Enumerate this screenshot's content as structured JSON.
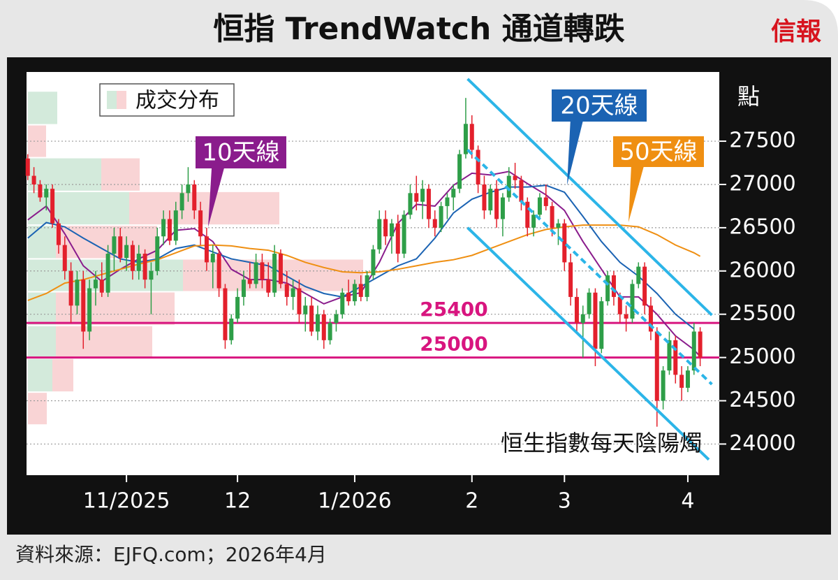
{
  "logo": "信報",
  "source": "資料來源：EJFQ.com；2026年4月",
  "chart_data": {
    "type": "candlestick",
    "title": "恒指 TrendWatch 通道轉跌",
    "y_unit": "點",
    "label": "恒生指數每天陰陽燭",
    "up_color": "#2e9e48",
    "down_color": "#e3202c",
    "grid": true,
    "xlim": [
      -0.2,
      112.1
    ],
    "ylim": [
      23640,
      28300
    ],
    "yticks": [
      24000,
      24500,
      25000,
      25500,
      26000,
      26500,
      27000,
      27500
    ],
    "xticks": [
      {
        "value": 16,
        "label": "11/2025"
      },
      {
        "value": 34,
        "label": "12"
      },
      {
        "value": 53,
        "label": "1/2026"
      },
      {
        "value": 72,
        "label": "2"
      },
      {
        "value": 87,
        "label": "3"
      },
      {
        "value": 107,
        "label": "4"
      }
    ],
    "ohlc": [
      [
        27300,
        27350,
        27050,
        27100
      ],
      [
        27100,
        27200,
        26900,
        27000
      ],
      [
        27000,
        27050,
        26800,
        26850
      ],
      [
        26850,
        27000,
        26700,
        26950
      ],
      [
        26950,
        27000,
        26500,
        26550
      ],
      [
        26550,
        26600,
        26200,
        26300
      ],
      [
        26300,
        26400,
        25900,
        26000
      ],
      [
        26000,
        26100,
        25400,
        25600
      ],
      [
        25600,
        26000,
        25500,
        25900
      ],
      [
        25900,
        26000,
        25100,
        25300
      ],
      [
        25300,
        25900,
        25200,
        25800
      ],
      [
        25800,
        26000,
        25600,
        25900
      ],
      [
        25900,
        26100,
        25700,
        25750
      ],
      [
        25750,
        26300,
        25700,
        26200
      ],
      [
        26200,
        26500,
        26000,
        26400
      ],
      [
        26400,
        26500,
        26100,
        26150
      ],
      [
        26150,
        26400,
        26000,
        26300
      ],
      [
        26300,
        26350,
        25900,
        26000
      ],
      [
        26000,
        26300,
        25900,
        26200
      ],
      [
        26200,
        26250,
        25800,
        25900
      ],
      [
        25900,
        26100,
        25500,
        26000
      ],
      [
        26000,
        26500,
        25950,
        26400
      ],
      [
        26400,
        26700,
        26300,
        26600
      ],
      [
        26600,
        26700,
        26300,
        26350
      ],
      [
        26350,
        26800,
        26300,
        26700
      ],
      [
        26700,
        27000,
        26600,
        26900
      ],
      [
        26900,
        27200,
        26800,
        27000
      ],
      [
        27000,
        27050,
        26600,
        26700
      ],
      [
        26700,
        26800,
        26300,
        26400
      ],
      [
        26400,
        26500,
        26000,
        26100
      ],
      [
        26100,
        26300,
        25800,
        26200
      ],
      [
        26200,
        26250,
        25700,
        25800
      ],
      [
        25800,
        25850,
        25100,
        25200
      ],
      [
        25200,
        25500,
        25150,
        25450
      ],
      [
        25450,
        25800,
        25400,
        25700
      ],
      [
        25700,
        26000,
        25600,
        25900
      ],
      [
        25900,
        26100,
        25800,
        25850
      ],
      [
        25850,
        26200,
        25800,
        26100
      ],
      [
        26100,
        26200,
        25800,
        25900
      ],
      [
        25900,
        26100,
        25700,
        25750
      ],
      [
        25750,
        26300,
        25700,
        26200
      ],
      [
        26200,
        26250,
        25800,
        25850
      ],
      [
        25850,
        26000,
        25600,
        25700
      ],
      [
        25700,
        25900,
        25550,
        25800
      ],
      [
        25800,
        25900,
        25400,
        25500
      ],
      [
        25500,
        25700,
        25300,
        25600
      ],
      [
        25600,
        25700,
        25250,
        25300
      ],
      [
        25300,
        25600,
        25200,
        25500
      ],
      [
        25500,
        25550,
        25100,
        25200
      ],
      [
        25200,
        25450,
        25150,
        25400
      ],
      [
        25400,
        25550,
        25300,
        25500
      ],
      [
        25500,
        25800,
        25450,
        25750
      ],
      [
        25750,
        25900,
        25600,
        25650
      ],
      [
        25650,
        25900,
        25600,
        25850
      ],
      [
        25850,
        25950,
        25650,
        25700
      ],
      [
        25700,
        26000,
        25650,
        25950
      ],
      [
        25950,
        26300,
        25900,
        26250
      ],
      [
        26250,
        26700,
        26200,
        26600
      ],
      [
        26600,
        26700,
        26300,
        26400
      ],
      [
        26400,
        26600,
        26200,
        26550
      ],
      [
        26550,
        26650,
        26100,
        26200
      ],
      [
        26200,
        26700,
        26150,
        26650
      ],
      [
        26650,
        27000,
        26600,
        26900
      ],
      [
        26900,
        27100,
        26700,
        26800
      ],
      [
        26800,
        27050,
        26600,
        26950
      ],
      [
        26950,
        27000,
        26500,
        26600
      ],
      [
        26600,
        26700,
        26400,
        26500
      ],
      [
        26500,
        26800,
        26450,
        26750
      ],
      [
        26750,
        26900,
        26600,
        26850
      ],
      [
        26850,
        27000,
        26700,
        26950
      ],
      [
        26950,
        27400,
        26900,
        27350
      ],
      [
        27350,
        28000,
        27300,
        27700
      ],
      [
        27700,
        27800,
        27300,
        27400
      ],
      [
        27400,
        27450,
        26900,
        27000
      ],
      [
        27000,
        27100,
        26600,
        26700
      ],
      [
        26700,
        27000,
        26650,
        26950
      ],
      [
        26950,
        27050,
        26500,
        26600
      ],
      [
        26600,
        26900,
        26400,
        26850
      ],
      [
        26850,
        27200,
        26800,
        27100
      ],
      [
        27100,
        27250,
        26950,
        27050
      ],
      [
        27050,
        27100,
        26700,
        26800
      ],
      [
        26800,
        26850,
        26400,
        26500
      ],
      [
        26500,
        26700,
        26400,
        26650
      ],
      [
        26650,
        26900,
        26600,
        26850
      ],
      [
        26850,
        27000,
        26700,
        26750
      ],
      [
        26750,
        26800,
        26400,
        26500
      ],
      [
        26500,
        26600,
        26300,
        26550
      ],
      [
        26550,
        26600,
        26000,
        26100
      ],
      [
        26100,
        26200,
        25600,
        25700
      ],
      [
        25700,
        25800,
        25300,
        25400
      ],
      [
        25400,
        25600,
        25000,
        25500
      ],
      [
        25500,
        25800,
        25450,
        25750
      ],
      [
        25750,
        25800,
        24900,
        25100
      ],
      [
        25100,
        25700,
        25050,
        25650
      ],
      [
        25650,
        26000,
        25600,
        25950
      ],
      [
        25950,
        26000,
        25600,
        25700
      ],
      [
        25700,
        25750,
        25400,
        25500
      ],
      [
        25500,
        25600,
        25300,
        25450
      ],
      [
        25450,
        25900,
        25400,
        25850
      ],
      [
        25850,
        26100,
        25800,
        26050
      ],
      [
        26050,
        26100,
        25500,
        25600
      ],
      [
        25600,
        25700,
        25200,
        25300
      ],
      [
        25300,
        25350,
        24200,
        24500
      ],
      [
        24500,
        24900,
        24400,
        24850
      ],
      [
        24850,
        25300,
        24800,
        25200
      ],
      [
        25200,
        25250,
        24700,
        24800
      ],
      [
        24800,
        24900,
        24500,
        24650
      ],
      [
        24650,
        24900,
        24600,
        24850
      ],
      [
        24850,
        25400,
        24800,
        25300
      ],
      [
        25300,
        25350,
        24900,
        25000
      ]
    ],
    "series": [
      {
        "name": "10天線",
        "color": "#8a1c8c",
        "x": [
          0,
          3,
          6,
          9,
          12,
          15,
          18,
          21,
          24,
          27,
          30,
          33,
          36,
          39,
          42,
          45,
          48,
          51,
          54,
          57,
          60,
          63,
          66,
          69,
          72,
          75,
          78,
          81,
          84,
          87,
          90,
          93,
          96,
          99,
          102,
          105,
          108,
          109
        ],
        "values": [
          26590,
          26750,
          26430,
          26060,
          25880,
          26020,
          26140,
          26240,
          26470,
          26490,
          26340,
          26020,
          25900,
          25900,
          25860,
          25740,
          25620,
          25700,
          25750,
          26100,
          26550,
          26770,
          26750,
          26990,
          27130,
          27110,
          27150,
          27010,
          26880,
          26700,
          26340,
          26020,
          25700,
          25700,
          25500,
          25250,
          25090,
          25010
        ]
      },
      {
        "name": "20天線",
        "color": "#1b63b3",
        "x": [
          0,
          3,
          6,
          9,
          12,
          15,
          18,
          21,
          24,
          27,
          30,
          33,
          36,
          39,
          42,
          45,
          48,
          51,
          54,
          57,
          60,
          63,
          66,
          69,
          72,
          75,
          78,
          81,
          84,
          87,
          90,
          93,
          96,
          99,
          102,
          105,
          108
        ],
        "values": [
          26380,
          26560,
          26510,
          26380,
          26260,
          26140,
          26100,
          26140,
          26260,
          26300,
          26220,
          26140,
          26100,
          26060,
          25940,
          25820,
          25740,
          25700,
          25820,
          25940,
          26060,
          26140,
          26380,
          26670,
          26830,
          26910,
          26970,
          26970,
          26990,
          26910,
          26630,
          26340,
          26100,
          25940,
          25740,
          25500,
          25330
        ]
      },
      {
        "name": "50天線",
        "color": "#ef8f12",
        "x": [
          0,
          3,
          6,
          9,
          12,
          15,
          18,
          21,
          24,
          27,
          30,
          33,
          36,
          39,
          42,
          45,
          48,
          51,
          54,
          57,
          60,
          63,
          66,
          69,
          72,
          75,
          78,
          81,
          84,
          87,
          90,
          93,
          96,
          99,
          102,
          105,
          108,
          109
        ],
        "values": [
          25660,
          25740,
          25860,
          25900,
          25960,
          26020,
          26080,
          26130,
          26210,
          26290,
          26300,
          26290,
          26260,
          26240,
          26180,
          26100,
          26040,
          25990,
          25980,
          25990,
          26020,
          26060,
          26100,
          26130,
          26180,
          26260,
          26340,
          26420,
          26480,
          26510,
          26530,
          26530,
          26530,
          26510,
          26420,
          26300,
          26210,
          26170
        ]
      }
    ],
    "profile": {
      "name": "成交分布",
      "up_color": "#d3eadb",
      "down_color": "#f9d4d5",
      "bins": [
        24220,
        24600,
        24990,
        25370,
        25760,
        26140,
        26530,
        26920,
        27310,
        27690,
        28080
      ],
      "up": [
        0,
        35,
        40,
        40,
        222,
        40,
        145,
        105,
        0,
        42
      ],
      "down": [
        27,
        30,
        138,
        170,
        258,
        145,
        215,
        55,
        26,
        0
      ]
    },
    "levels": [
      25400,
      25000
    ],
    "level_color": "#d8157f",
    "channels": [
      {
        "x": [
          71.3,
          110.9
        ],
        "values": [
          28220,
          25490
        ],
        "dashed": false
      },
      {
        "x": [
          71.3,
          110.9
        ],
        "values": [
          27400,
          24690
        ],
        "dashed": true
      },
      {
        "x": [
          71.3,
          110.4
        ],
        "values": [
          26500,
          23820
        ],
        "dashed": false
      }
    ],
    "channel_color": "#2cb5e8"
  }
}
